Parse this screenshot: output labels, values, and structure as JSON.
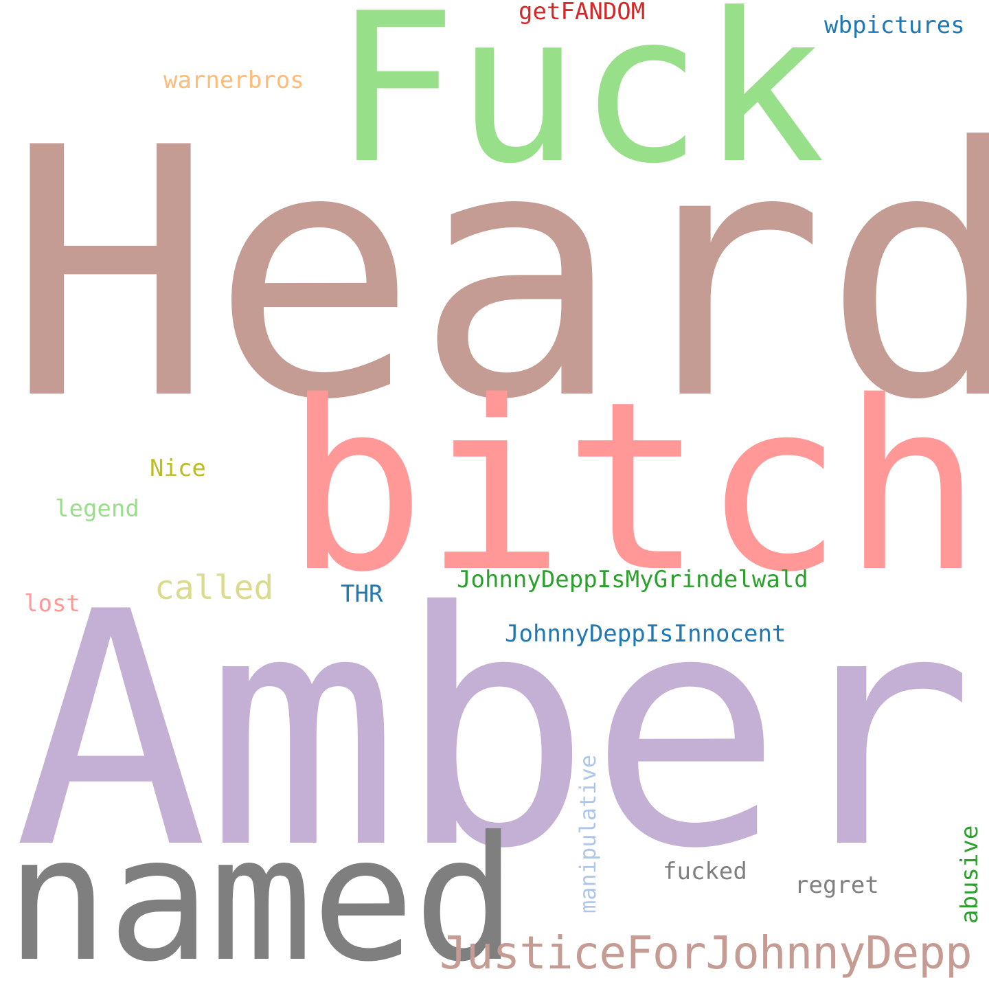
{
  "words": {
    "heard": {
      "text": "Heard",
      "color": "#c49c94"
    },
    "amber": {
      "text": "Amber",
      "color": "#c5b0d5"
    },
    "bitch": {
      "text": "bitch",
      "color": "#ff9896"
    },
    "fuck": {
      "text": "Fuck",
      "color": "#98df8a"
    },
    "named": {
      "text": "named",
      "color": "#7f7f7f"
    },
    "justice": {
      "text": "JusticeForJohnnyDepp",
      "color": "#c49c94"
    },
    "called": {
      "text": "called",
      "color": "#dbdb8d"
    },
    "getfandom": {
      "text": "getFANDOM",
      "color": "#d62728"
    },
    "wbpictures": {
      "text": "wbpictures",
      "color": "#1f77b4"
    },
    "warnerbros": {
      "text": "warnerbros",
      "color": "#ffbb78"
    },
    "nice": {
      "text": "Nice",
      "color": "#bcbd22"
    },
    "legend": {
      "text": "legend",
      "color": "#98df8a"
    },
    "lost": {
      "text": "lost",
      "color": "#ff9896"
    },
    "thr": {
      "text": "THR",
      "color": "#1f77b4"
    },
    "grindelwald": {
      "text": "JohnnyDeppIsMyGrindelwald",
      "color": "#2ca02c"
    },
    "innocent": {
      "text": "JohnnyDeppIsInnocent",
      "color": "#1f77b4"
    },
    "manipulative": {
      "text": "manipulative",
      "color": "#aec7e8"
    },
    "fucked": {
      "text": "fucked",
      "color": "#7f7f7f"
    },
    "regret": {
      "text": "regret",
      "color": "#7f7f7f"
    },
    "abusive": {
      "text": "abusive",
      "color": "#2ca02c"
    }
  }
}
